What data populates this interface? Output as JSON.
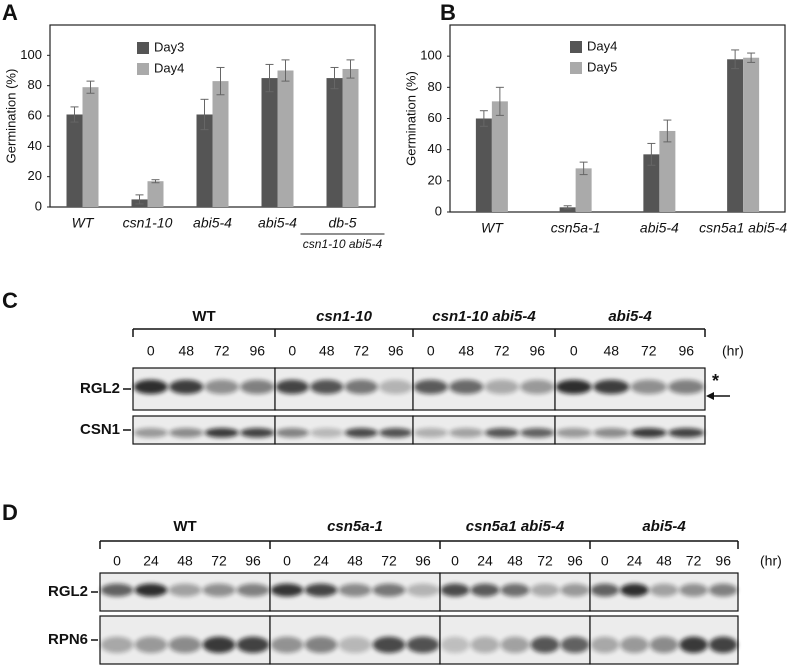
{
  "chart_data": [
    {
      "type": "bar",
      "panel": "A",
      "ylabel": "Germination (%)",
      "categories": [
        "WT",
        "csn1-10",
        "abi5-4",
        "abi5-4",
        "db-5"
      ],
      "annotation": "csn1-10 abi5-4",
      "series": [
        {
          "name": "Day3",
          "color": "#555555",
          "values": [
            61,
            5,
            61,
            85,
            85
          ],
          "errors": [
            5,
            3,
            10,
            9,
            7
          ]
        },
        {
          "name": "Day4",
          "color": "#aaaaaa",
          "values": [
            79,
            17,
            83,
            90,
            91
          ],
          "errors": [
            4,
            1,
            9,
            7,
            6
          ]
        }
      ],
      "ylim": [
        0,
        120
      ],
      "yticks": [
        0,
        20,
        40,
        60,
        80,
        100
      ],
      "grid": false
    },
    {
      "type": "bar",
      "panel": "B",
      "ylabel": "Germination (%)",
      "categories": [
        "WT",
        "csn5a-1",
        "abi5-4",
        "csn5a1 abi5-4"
      ],
      "series": [
        {
          "name": "Day4",
          "color": "#555555",
          "values": [
            60,
            3,
            37,
            98
          ],
          "errors": [
            5,
            1,
            7,
            6
          ]
        },
        {
          "name": "Day5",
          "color": "#aaaaaa",
          "values": [
            71,
            28,
            52,
            99
          ],
          "errors": [
            9,
            4,
            7,
            3
          ]
        }
      ],
      "ylim": [
        0,
        120
      ],
      "yticks": [
        0,
        20,
        40,
        60,
        80,
        100
      ],
      "grid": false
    }
  ],
  "blots": [
    {
      "panel": "C",
      "groups": [
        "WT",
        "csn1-10",
        "csn1-10 abi5-4",
        "abi5-4"
      ],
      "timepoints": [
        "0",
        "48",
        "72",
        "96"
      ],
      "unit": "(hr)",
      "rows": [
        "RGL2",
        "CSN1"
      ],
      "marker": "*"
    },
    {
      "panel": "D",
      "groups": [
        "WT",
        "csn5a-1",
        "csn5a1 abi5-4",
        "abi5-4"
      ],
      "timepoints": [
        "0",
        "24",
        "48",
        "72",
        "96"
      ],
      "unit": "(hr)",
      "rows": [
        "RGL2",
        "RPN6"
      ]
    }
  ]
}
